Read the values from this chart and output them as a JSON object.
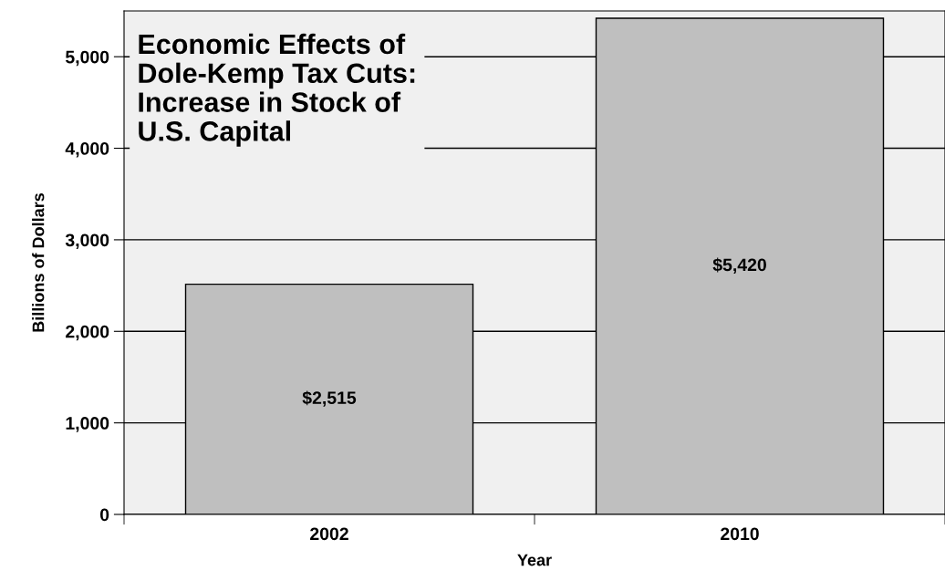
{
  "chart_data": {
    "type": "bar",
    "title": "Economic Effects of\nDole-Kemp Tax Cuts:\nIncrease in Stock of\nU.S. Capital",
    "xlabel": "Year",
    "ylabel": "Billions of Dollars",
    "categories": [
      "2002",
      "2010"
    ],
    "values": [
      2515,
      5420
    ],
    "value_labels": [
      "$2,515",
      "$5,420"
    ],
    "color": "#bfbfbf",
    "ylim": [
      0,
      5500
    ],
    "yticks": [
      0,
      {
        "value": 1000,
        "label": "1,000"
      },
      {
        "value": 2000,
        "label": "2,000"
      },
      {
        "value": 3000,
        "label": "3,000"
      },
      {
        "value": 4000,
        "label": "4,000"
      },
      {
        "value": 5000,
        "label": "5,000"
      }
    ],
    "grid": "y"
  }
}
